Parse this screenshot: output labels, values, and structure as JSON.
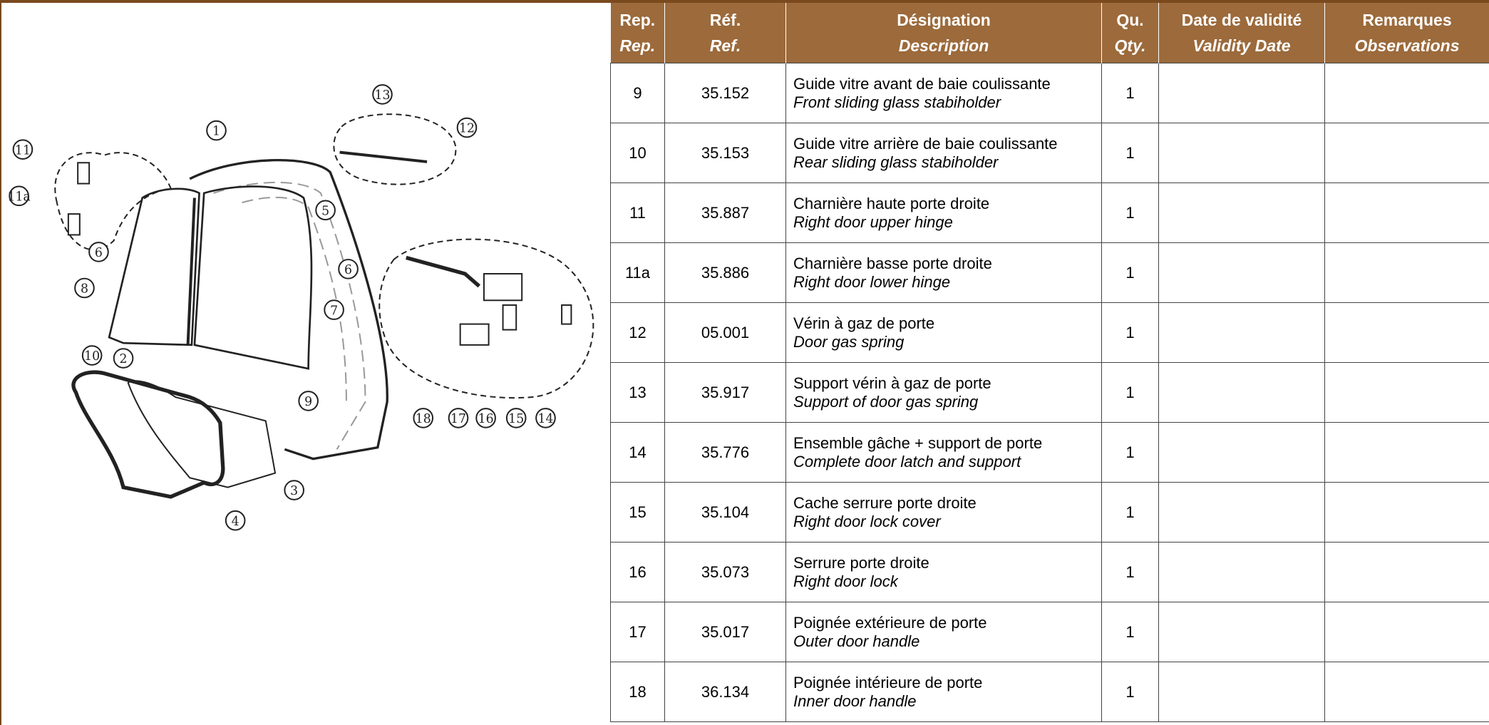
{
  "table": {
    "header": [
      [
        "Rep.",
        "Rep."
      ],
      [
        "Réf.",
        "Ref."
      ],
      [
        "Désignation",
        "Description"
      ],
      [
        "Qu.",
        "Qty."
      ],
      [
        "Date de validité",
        "Validity Date"
      ],
      [
        "Remarques",
        "Observations"
      ]
    ],
    "rows": [
      [
        "9",
        "35.152",
        "Guide vitre avant de baie coulissante",
        "Front sliding glass stabiholder",
        "1"
      ],
      [
        "10",
        "35.153",
        "Guide vitre arrière de baie coulissante",
        "Rear sliding glass stabiholder",
        "1"
      ],
      [
        "11",
        "35.887",
        "Charnière haute porte droite",
        "Right door upper hinge",
        "1"
      ],
      [
        "11a",
        "35.886",
        "Charnière basse porte droite",
        "Right door lower hinge",
        "1"
      ],
      [
        "12",
        "05.001",
        "Vérin à gaz de porte",
        "Door gas spring",
        "1"
      ],
      [
        "13",
        "35.917",
        "Support vérin à gaz de porte",
        "Support of door gas spring",
        "1"
      ],
      [
        "14",
        "35.776",
        "Ensemble gâche + support de porte",
        "Complete door latch and support",
        "1"
      ],
      [
        "15",
        "35.104",
        "Cache serrure porte droite",
        "Right door lock cover",
        "1"
      ],
      [
        "16",
        "35.073",
        "Serrure porte droite",
        "Right door lock",
        "1"
      ],
      [
        "17",
        "35.017",
        "Poignée extérieure de porte",
        "Outer door handle",
        "1"
      ],
      [
        "18",
        "36.134",
        "Poignée intérieure de porte",
        "Inner door handle",
        "1"
      ]
    ]
  },
  "diagram": {
    "callouts": [
      "1",
      "2",
      "3",
      "4",
      "5",
      "6",
      "6",
      "7",
      "8",
      "9",
      "10",
      "11",
      "11a",
      "12",
      "13",
      "14",
      "15",
      "16",
      "17",
      "18"
    ]
  }
}
